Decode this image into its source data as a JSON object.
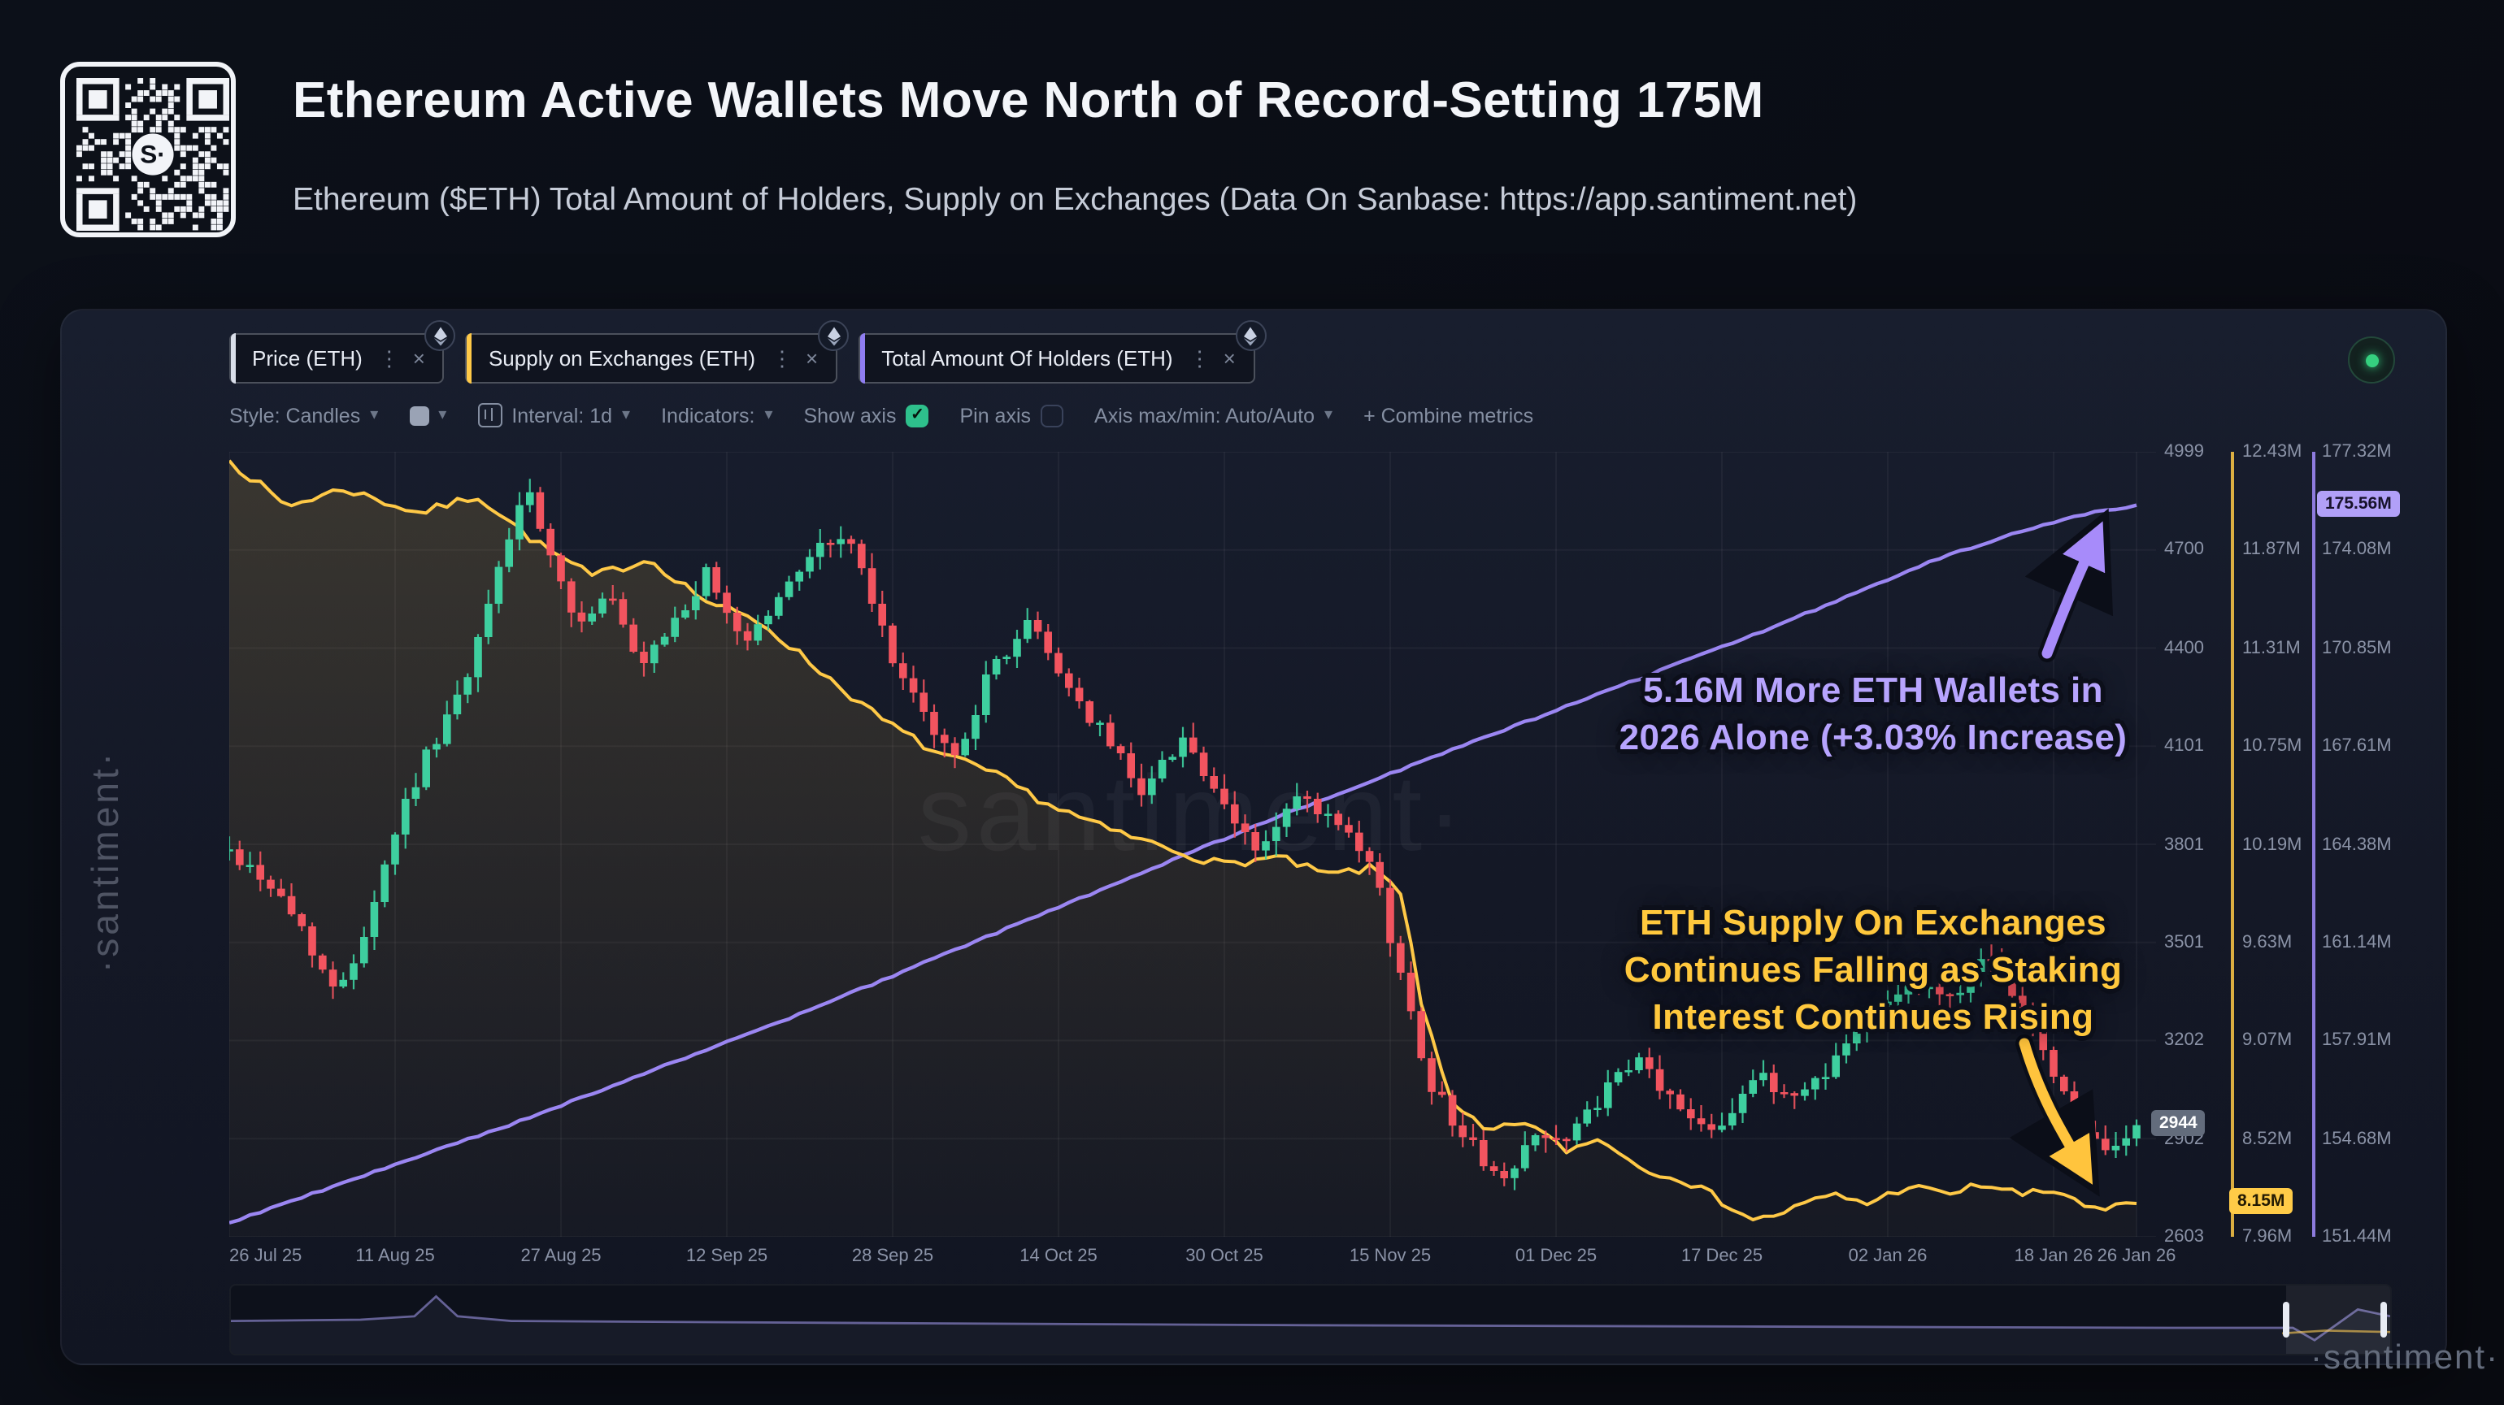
{
  "page": {
    "title": "Ethereum Active Wallets Move North of Record-Setting 175M",
    "subtitle": "Ethereum ($ETH) Total Amount of Holders, Supply on Exchanges (Data On Sanbase: https://app.santiment.net)",
    "watermark_center": "santiment·",
    "watermark_left": "·santiment·",
    "watermark_bottom_right": "·santiment·"
  },
  "tabs": [
    {
      "label": "Price (ETH)",
      "accent": "#d9dee9"
    },
    {
      "label": "Supply on Exchanges (ETH)",
      "accent": "#ffc947"
    },
    {
      "label": "Total Amount Of Holders (ETH)",
      "accent": "#8f7df0"
    }
  ],
  "toolbar": {
    "style_label": "Style: Candles",
    "interval_label": "Interval: 1d",
    "indicators_label": "Indicators:",
    "show_axis_label": "Show axis",
    "pin_axis_label": "Pin axis",
    "axis_maxmin_label": "Axis max/min: Auto/Auto",
    "combine_label": "+ Combine metrics"
  },
  "annotations": {
    "wallets_line1": "5.16M More ETH Wallets in",
    "wallets_line2": "2026 Alone (+3.03% Increase)",
    "wallets_color": "#b7a4fe",
    "supply_line1": "ETH Supply On Exchanges",
    "supply_line2": "Continues Falling as Staking",
    "supply_line3": "Interest Continues Rising",
    "supply_color": "#ffc83d"
  },
  "chart_data": {
    "type": "candlestick_with_lines",
    "interval": "1d",
    "total_days": 184,
    "x_tick_labels": [
      "26 Jul 25",
      "11 Aug 25",
      "27 Aug 25",
      "12 Sep 25",
      "28 Sep 25",
      "14 Oct 25",
      "30 Oct 25",
      "15 Nov 25",
      "01 Dec 25",
      "17 Dec 25",
      "02 Jan 26",
      "18 Jan 26",
      "26 Jan 26"
    ],
    "x_tick_days": [
      0,
      16,
      32,
      48,
      64,
      80,
      96,
      112,
      128,
      144,
      160,
      176,
      184
    ],
    "axes": {
      "price": {
        "name": "Price (ETH)",
        "min": 2603,
        "max": 4999,
        "ticks": [
          4999,
          4700,
          4400,
          4101,
          3801,
          3501,
          3202,
          2902,
          2603
        ],
        "current": 2944,
        "current_label": "2944",
        "up_color": "#3ecf9f",
        "down_color": "#f2545f"
      },
      "supply": {
        "name": "Supply on Exchanges (ETH)",
        "min": 7.96,
        "max": 12.43,
        "tick_labels": [
          "12.43M",
          "11.87M",
          "11.31M",
          "10.75M",
          "10.19M",
          "9.63M",
          "9.07M",
          "8.52M",
          "7.96M"
        ],
        "current": 8.15,
        "current_label": "8.15M",
        "color": "#ffc947"
      },
      "holders": {
        "name": "Total Amount Of Holders (ETH)",
        "min": 151.44,
        "max": 177.32,
        "tick_labels": [
          "177.32M",
          "174.08M",
          "170.85M",
          "167.61M",
          "164.38M",
          "161.14M",
          "157.91M",
          "154.68M",
          "151.44M"
        ],
        "current": 175.56,
        "current_label": "175.56M",
        "color": "#9b86f2"
      }
    },
    "series": {
      "price_close_anchors": [
        [
          0,
          3780
        ],
        [
          0.02,
          3690
        ],
        [
          0.04,
          3530
        ],
        [
          0.055,
          3340
        ],
        [
          0.07,
          3520
        ],
        [
          0.09,
          3900
        ],
        [
          0.11,
          4150
        ],
        [
          0.125,
          4300
        ],
        [
          0.14,
          4620
        ],
        [
          0.155,
          4890
        ],
        [
          0.165,
          4730
        ],
        [
          0.18,
          4480
        ],
        [
          0.2,
          4560
        ],
        [
          0.215,
          4320
        ],
        [
          0.23,
          4450
        ],
        [
          0.25,
          4620
        ],
        [
          0.27,
          4420
        ],
        [
          0.29,
          4560
        ],
        [
          0.305,
          4700
        ],
        [
          0.325,
          4740
        ],
        [
          0.34,
          4480
        ],
        [
          0.36,
          4220
        ],
        [
          0.38,
          4060
        ],
        [
          0.4,
          4340
        ],
        [
          0.42,
          4480
        ],
        [
          0.44,
          4280
        ],
        [
          0.46,
          4120
        ],
        [
          0.48,
          3960
        ],
        [
          0.5,
          4140
        ],
        [
          0.52,
          3910
        ],
        [
          0.54,
          3780
        ],
        [
          0.56,
          3940
        ],
        [
          0.58,
          3860
        ],
        [
          0.6,
          3720
        ],
        [
          0.615,
          3380
        ],
        [
          0.63,
          3070
        ],
        [
          0.65,
          2890
        ],
        [
          0.67,
          2760
        ],
        [
          0.685,
          2940
        ],
        [
          0.7,
          2880
        ],
        [
          0.72,
          3040
        ],
        [
          0.74,
          3140
        ],
        [
          0.76,
          2990
        ],
        [
          0.78,
          2940
        ],
        [
          0.8,
          3090
        ],
        [
          0.82,
          3030
        ],
        [
          0.84,
          3130
        ],
        [
          0.86,
          3280
        ],
        [
          0.88,
          3380
        ],
        [
          0.9,
          3330
        ],
        [
          0.92,
          3440
        ],
        [
          0.935,
          3360
        ],
        [
          0.95,
          3190
        ],
        [
          0.97,
          2930
        ],
        [
          0.985,
          2850
        ],
        [
          1,
          2944
        ]
      ],
      "supply_anchors": [
        [
          0,
          12.38
        ],
        [
          0.03,
          12.12
        ],
        [
          0.06,
          12.22
        ],
        [
          0.1,
          12.08
        ],
        [
          0.13,
          12.18
        ],
        [
          0.16,
          11.92
        ],
        [
          0.19,
          11.72
        ],
        [
          0.22,
          11.82
        ],
        [
          0.25,
          11.58
        ],
        [
          0.28,
          11.45
        ],
        [
          0.31,
          11.18
        ],
        [
          0.34,
          10.92
        ],
        [
          0.37,
          10.72
        ],
        [
          0.4,
          10.6
        ],
        [
          0.43,
          10.42
        ],
        [
          0.46,
          10.28
        ],
        [
          0.49,
          10.18
        ],
        [
          0.52,
          10.08
        ],
        [
          0.55,
          10.12
        ],
        [
          0.575,
          10.02
        ],
        [
          0.6,
          10.06
        ],
        [
          0.615,
          9.92
        ],
        [
          0.625,
          9.3
        ],
        [
          0.64,
          8.72
        ],
        [
          0.66,
          8.55
        ],
        [
          0.68,
          8.62
        ],
        [
          0.7,
          8.45
        ],
        [
          0.72,
          8.52
        ],
        [
          0.74,
          8.35
        ],
        [
          0.76,
          8.3
        ],
        [
          0.78,
          8.18
        ],
        [
          0.8,
          8.05
        ],
        [
          0.82,
          8.12
        ],
        [
          0.84,
          8.2
        ],
        [
          0.86,
          8.15
        ],
        [
          0.88,
          8.25
        ],
        [
          0.9,
          8.2
        ],
        [
          0.92,
          8.26
        ],
        [
          0.94,
          8.2
        ],
        [
          0.96,
          8.22
        ],
        [
          0.98,
          8.1
        ],
        [
          1,
          8.15
        ]
      ],
      "holders_anchors": [
        [
          0,
          151.9
        ],
        [
          0.05,
          153.0
        ],
        [
          0.1,
          154.1
        ],
        [
          0.15,
          155.2
        ],
        [
          0.2,
          156.4
        ],
        [
          0.25,
          157.6
        ],
        [
          0.3,
          158.8
        ],
        [
          0.35,
          160.1
        ],
        [
          0.4,
          161.4
        ],
        [
          0.45,
          162.7
        ],
        [
          0.5,
          164.0
        ],
        [
          0.55,
          165.3
        ],
        [
          0.6,
          166.5
        ],
        [
          0.65,
          167.7
        ],
        [
          0.7,
          168.9
        ],
        [
          0.75,
          170.1
        ],
        [
          0.8,
          171.3
        ],
        [
          0.85,
          172.6
        ],
        [
          0.9,
          173.9
        ],
        [
          0.95,
          174.9
        ],
        [
          0.98,
          175.35
        ],
        [
          1,
          175.56
        ]
      ]
    },
    "minimap": {
      "holders_profile": [
        [
          0,
          0.52
        ],
        [
          0.06,
          0.5
        ],
        [
          0.085,
          0.45
        ],
        [
          0.095,
          0.16
        ],
        [
          0.105,
          0.45
        ],
        [
          0.13,
          0.52
        ],
        [
          0.3,
          0.55
        ],
        [
          0.5,
          0.58
        ],
        [
          0.7,
          0.6
        ],
        [
          0.9,
          0.62
        ],
        [
          0.955,
          0.62
        ],
        [
          0.965,
          0.8
        ],
        [
          0.985,
          0.35
        ],
        [
          1,
          0.45
        ]
      ],
      "supply_profile": [
        [
          0.95,
          0.7
        ],
        [
          0.97,
          0.66
        ],
        [
          1,
          0.68
        ]
      ]
    }
  }
}
